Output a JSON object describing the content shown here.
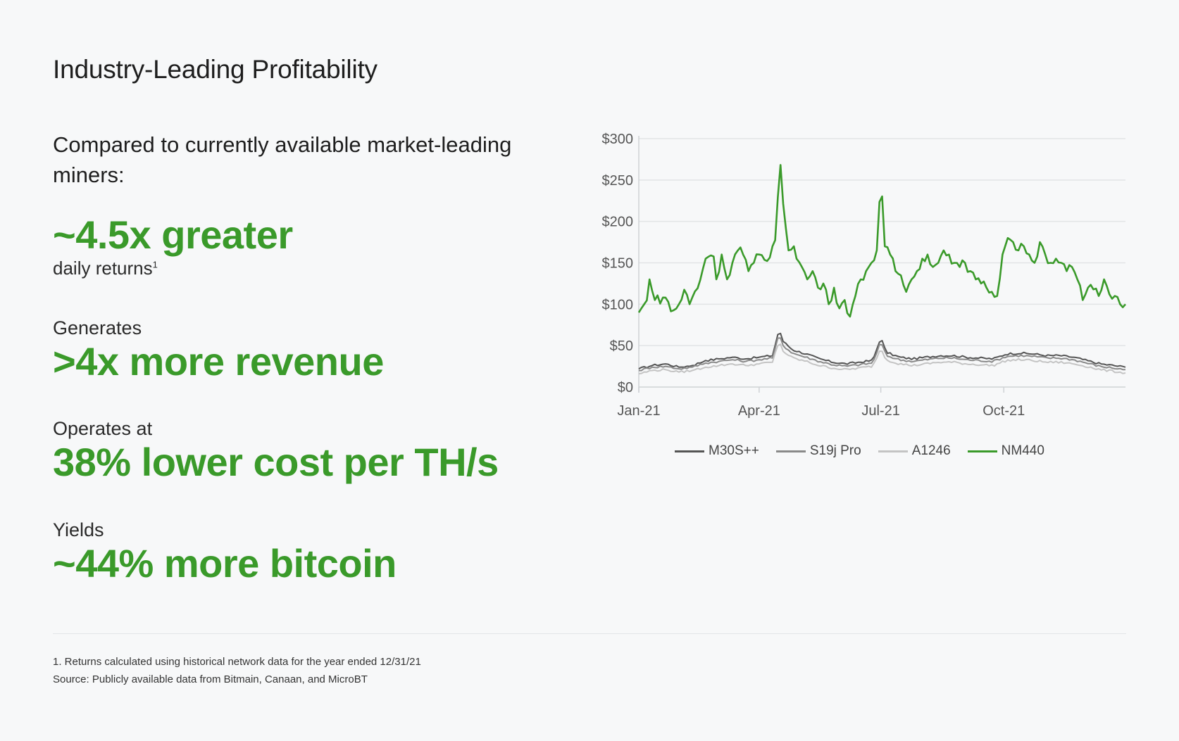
{
  "page": {
    "title": "Industry-Leading Profitability",
    "intro": "Compared to currently available market-leading miners:"
  },
  "stats": [
    {
      "pre": "",
      "big": "~4.5x greater",
      "post": "daily returns",
      "post_sup": "1"
    },
    {
      "pre": "Generates",
      "big": ">4x more revenue",
      "post": ""
    },
    {
      "pre": "Operates at",
      "big": "38% lower cost per TH/s",
      "post": ""
    },
    {
      "pre": "Yields",
      "big": "~44% more bitcoin",
      "post": ""
    }
  ],
  "footnotes": [
    "1. Returns calculated using historical network data for the year ended 12/31/21",
    "Source: Publicly available data from Bitmain, Canaan, and MicroBT"
  ],
  "colors": {
    "accent": "#3a9a2a",
    "m30s": "#555555",
    "s19j": "#8a8a8a",
    "a1246": "#c4c4c4",
    "nm440": "#3a9a2a"
  },
  "chart_data": {
    "type": "line",
    "ylim": [
      0,
      300
    ],
    "yticks": [
      "$0",
      "$50",
      "$100",
      "$150",
      "$200",
      "$250",
      "$300"
    ],
    "ytick_values": [
      0,
      50,
      100,
      150,
      200,
      250,
      300
    ],
    "xticks": [
      "Jan-21",
      "Apr-21",
      "Jul-21",
      "Oct-21"
    ],
    "xtick_days": [
      0,
      90,
      181,
      273
    ],
    "grid": true,
    "legend_position": "bottom",
    "series": [
      {
        "name": "M30S++",
        "color_key": "m30s",
        "keypoints": [
          [
            0,
            22
          ],
          [
            10,
            26
          ],
          [
            20,
            28
          ],
          [
            30,
            24
          ],
          [
            40,
            26
          ],
          [
            50,
            32
          ],
          [
            60,
            34
          ],
          [
            70,
            36
          ],
          [
            80,
            34
          ],
          [
            90,
            36
          ],
          [
            100,
            38
          ],
          [
            105,
            70
          ],
          [
            108,
            55
          ],
          [
            115,
            45
          ],
          [
            125,
            40
          ],
          [
            135,
            34
          ],
          [
            145,
            30
          ],
          [
            155,
            28
          ],
          [
            165,
            30
          ],
          [
            175,
            32
          ],
          [
            181,
            60
          ],
          [
            185,
            42
          ],
          [
            195,
            36
          ],
          [
            205,
            34
          ],
          [
            215,
            36
          ],
          [
            225,
            38
          ],
          [
            235,
            38
          ],
          [
            245,
            36
          ],
          [
            255,
            35
          ],
          [
            265,
            34
          ],
          [
            275,
            40
          ],
          [
            285,
            41
          ],
          [
            295,
            40
          ],
          [
            305,
            38
          ],
          [
            315,
            38
          ],
          [
            325,
            36
          ],
          [
            335,
            32
          ],
          [
            345,
            28
          ],
          [
            355,
            26
          ],
          [
            364,
            24
          ]
        ]
      },
      {
        "name": "S19j Pro",
        "color_key": "s19j",
        "keypoints": [
          [
            0,
            20
          ],
          [
            10,
            24
          ],
          [
            20,
            25
          ],
          [
            30,
            22
          ],
          [
            40,
            24
          ],
          [
            50,
            29
          ],
          [
            60,
            31
          ],
          [
            70,
            33
          ],
          [
            80,
            31
          ],
          [
            90,
            33
          ],
          [
            100,
            35
          ],
          [
            105,
            64
          ],
          [
            108,
            50
          ],
          [
            115,
            41
          ],
          [
            125,
            36
          ],
          [
            135,
            31
          ],
          [
            145,
            27
          ],
          [
            155,
            25
          ],
          [
            165,
            27
          ],
          [
            175,
            29
          ],
          [
            181,
            55
          ],
          [
            185,
            38
          ],
          [
            195,
            33
          ],
          [
            205,
            31
          ],
          [
            215,
            33
          ],
          [
            225,
            35
          ],
          [
            235,
            35
          ],
          [
            245,
            33
          ],
          [
            255,
            32
          ],
          [
            265,
            31
          ],
          [
            275,
            37
          ],
          [
            285,
            38
          ],
          [
            295,
            37
          ],
          [
            305,
            35
          ],
          [
            315,
            35
          ],
          [
            325,
            33
          ],
          [
            335,
            29
          ],
          [
            345,
            25
          ],
          [
            355,
            23
          ],
          [
            364,
            21
          ]
        ]
      },
      {
        "name": "A1246",
        "color_key": "a1246",
        "keypoints": [
          [
            0,
            16
          ],
          [
            10,
            20
          ],
          [
            20,
            21
          ],
          [
            30,
            18
          ],
          [
            40,
            20
          ],
          [
            50,
            24
          ],
          [
            60,
            26
          ],
          [
            70,
            28
          ],
          [
            80,
            26
          ],
          [
            90,
            28
          ],
          [
            100,
            30
          ],
          [
            105,
            56
          ],
          [
            108,
            43
          ],
          [
            115,
            35
          ],
          [
            125,
            31
          ],
          [
            135,
            26
          ],
          [
            145,
            23
          ],
          [
            155,
            21
          ],
          [
            165,
            23
          ],
          [
            175,
            25
          ],
          [
            181,
            47
          ],
          [
            185,
            33
          ],
          [
            195,
            28
          ],
          [
            205,
            26
          ],
          [
            215,
            28
          ],
          [
            225,
            30
          ],
          [
            235,
            30
          ],
          [
            245,
            28
          ],
          [
            255,
            27
          ],
          [
            265,
            26
          ],
          [
            275,
            32
          ],
          [
            285,
            33
          ],
          [
            295,
            32
          ],
          [
            305,
            30
          ],
          [
            315,
            30
          ],
          [
            325,
            28
          ],
          [
            335,
            25
          ],
          [
            345,
            21
          ],
          [
            355,
            19
          ],
          [
            364,
            17
          ]
        ]
      },
      {
        "name": "NM440",
        "color_key": "nm440",
        "keypoints": [
          [
            0,
            90
          ],
          [
            5,
            100
          ],
          [
            8,
            130
          ],
          [
            12,
            105
          ],
          [
            20,
            108
          ],
          [
            25,
            90
          ],
          [
            30,
            100
          ],
          [
            35,
            118
          ],
          [
            38,
            100
          ],
          [
            45,
            125
          ],
          [
            50,
            155
          ],
          [
            55,
            165
          ],
          [
            58,
            130
          ],
          [
            62,
            160
          ],
          [
            66,
            130
          ],
          [
            70,
            150
          ],
          [
            75,
            170
          ],
          [
            78,
            160
          ],
          [
            82,
            140
          ],
          [
            86,
            150
          ],
          [
            90,
            160
          ],
          [
            95,
            150
          ],
          [
            100,
            170
          ],
          [
            103,
            178
          ],
          [
            105,
            285
          ],
          [
            107,
            240
          ],
          [
            109,
            210
          ],
          [
            112,
            165
          ],
          [
            115,
            175
          ],
          [
            118,
            155
          ],
          [
            122,
            145
          ],
          [
            126,
            130
          ],
          [
            130,
            140
          ],
          [
            134,
            120
          ],
          [
            138,
            125
          ],
          [
            142,
            100
          ],
          [
            146,
            120
          ],
          [
            150,
            95
          ],
          [
            154,
            105
          ],
          [
            158,
            85
          ],
          [
            162,
            110
          ],
          [
            166,
            130
          ],
          [
            170,
            140
          ],
          [
            174,
            150
          ],
          [
            178,
            165
          ],
          [
            181,
            252
          ],
          [
            184,
            170
          ],
          [
            188,
            160
          ],
          [
            192,
            140
          ],
          [
            196,
            135
          ],
          [
            200,
            115
          ],
          [
            204,
            130
          ],
          [
            208,
            140
          ],
          [
            212,
            155
          ],
          [
            216,
            160
          ],
          [
            220,
            145
          ],
          [
            224,
            150
          ],
          [
            228,
            165
          ],
          [
            232,
            160
          ],
          [
            236,
            150
          ],
          [
            240,
            145
          ],
          [
            244,
            150
          ],
          [
            248,
            140
          ],
          [
            252,
            130
          ],
          [
            256,
            125
          ],
          [
            260,
            120
          ],
          [
            264,
            115
          ],
          [
            268,
            110
          ],
          [
            272,
            160
          ],
          [
            276,
            180
          ],
          [
            280,
            175
          ],
          [
            284,
            165
          ],
          [
            288,
            170
          ],
          [
            292,
            160
          ],
          [
            296,
            150
          ],
          [
            300,
            175
          ],
          [
            304,
            160
          ],
          [
            308,
            150
          ],
          [
            312,
            155
          ],
          [
            316,
            150
          ],
          [
            320,
            140
          ],
          [
            324,
            145
          ],
          [
            328,
            130
          ],
          [
            332,
            105
          ],
          [
            336,
            120
          ],
          [
            340,
            118
          ],
          [
            344,
            110
          ],
          [
            348,
            130
          ],
          [
            352,
            112
          ],
          [
            356,
            110
          ],
          [
            360,
            100
          ],
          [
            364,
            100
          ]
        ]
      }
    ]
  }
}
